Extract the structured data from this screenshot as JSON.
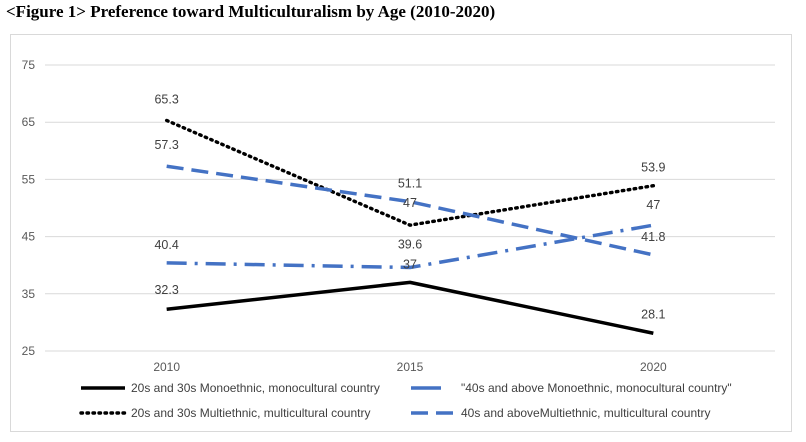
{
  "figure": {
    "title": "<Figure 1> Preference toward Multiculturalism by Age (2010-2020)"
  },
  "chart_data": {
    "type": "line",
    "title": "<Figure 1> Preference toward Multiculturalism by Age (2010-2020)",
    "categories": [
      "2010",
      "2015",
      "2020"
    ],
    "ylim": [
      25,
      75
    ],
    "yticks": [
      25,
      35,
      45,
      55,
      65,
      75
    ],
    "grid": "horizontal",
    "legend_position": "bottom",
    "series": [
      {
        "name": "20s and 30s Monoethnic, monocultural country",
        "values": [
          32.3,
          37,
          28.1
        ],
        "labels": [
          "32.3",
          "37",
          "28.1"
        ],
        "style": "solid",
        "color": "#000000"
      },
      {
        "name": "\"40s and above Monoethnic, monocultural country\"",
        "values": [
          40.4,
          39.6,
          47
        ],
        "labels": [
          "40.4",
          "39.6",
          "47"
        ],
        "style": "dashdot",
        "color": "#4472c4"
      },
      {
        "name": "20s and 30s Multiethnic, multicultural country",
        "values": [
          65.3,
          47,
          53.9
        ],
        "labels": [
          "65.3",
          "47",
          "53.9"
        ],
        "style": "dotted",
        "color": "#000000"
      },
      {
        "name": "40s and aboveMultiethnic, multicultural country",
        "values": [
          57.3,
          51.1,
          41.8
        ],
        "labels": [
          "57.3",
          "51.1",
          "41.8"
        ],
        "style": "dashed",
        "color": "#4472c4"
      }
    ]
  }
}
